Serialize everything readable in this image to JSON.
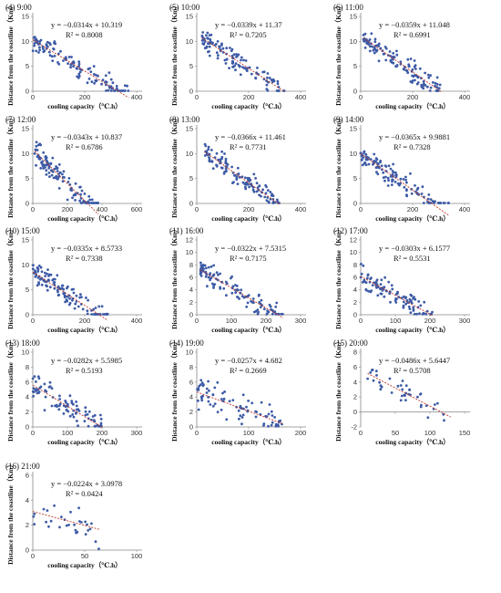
{
  "chart_data": [
    {
      "type": "scatter",
      "title": "(4) 9:00",
      "xlabel": "cooling capacity（℃.h）",
      "ylabel": "Distance from the coastline（Km）",
      "equation": "y = −0.0314x + 10.319",
      "r2": "R² = 0.8008",
      "slope": -0.0314,
      "intercept": 10.319,
      "xlim": [
        0,
        400
      ],
      "ylim": [
        0,
        15
      ],
      "xticks": [
        0,
        200,
        400
      ],
      "yticks": [
        0,
        5,
        10,
        15
      ],
      "point_count": 120,
      "x_range": [
        0,
        370
      ]
    },
    {
      "type": "scatter",
      "title": "(5) 10:00",
      "xlabel": "cooling capacity（℃.h）",
      "ylabel": "Distance from the coastline（Km）",
      "equation": "y = −0.0339x + 11.37",
      "r2": "R² = 0.7205",
      "slope": -0.0339,
      "intercept": 11.37,
      "xlim": [
        0,
        400
      ],
      "ylim": [
        0,
        15
      ],
      "xticks": [
        0,
        200,
        400
      ],
      "yticks": [
        0,
        5,
        10,
        15
      ],
      "point_count": 120,
      "x_range": [
        20,
        340
      ]
    },
    {
      "type": "scatter",
      "title": "(6) 11:00",
      "xlabel": "cooling capacity（℃.h）",
      "ylabel": "Distance from the coastline（Km）",
      "equation": "y = −0.0359x + 11.048",
      "r2": "R² = 0.6991",
      "slope": -0.0359,
      "intercept": 11.048,
      "xlim": [
        0,
        400
      ],
      "ylim": [
        0,
        15
      ],
      "xticks": [
        0,
        200,
        400
      ],
      "yticks": [
        0,
        5,
        10,
        15
      ],
      "point_count": 120,
      "x_range": [
        10,
        310
      ]
    },
    {
      "type": "scatter",
      "title": "(7) 12:00",
      "xlabel": "cooling capacity（℃.h）",
      "ylabel": "Distance from the coastline（Km）",
      "equation": "y = −0.0343x + 10.837",
      "r2": "R² = 0.6786",
      "slope": -0.0343,
      "intercept": 10.837,
      "xlim": [
        0,
        600
      ],
      "ylim": [
        0,
        15
      ],
      "xticks": [
        0,
        200,
        400,
        600
      ],
      "yticks": [
        0,
        5,
        10,
        15
      ],
      "point_count": 120,
      "x_range": [
        10,
        380
      ]
    },
    {
      "type": "scatter",
      "title": "(8) 13:00",
      "xlabel": "cooling capacity（℃.h）",
      "ylabel": "Distance from the coastline（Km）",
      "equation": "y = −0.0366x + 11.461",
      "r2": "R² = 0.7731",
      "slope": -0.0366,
      "intercept": 11.461,
      "xlim": [
        0,
        400
      ],
      "ylim": [
        0,
        15
      ],
      "xticks": [
        0,
        200,
        400
      ],
      "yticks": [
        0,
        5,
        10,
        15
      ],
      "point_count": 120,
      "x_range": [
        30,
        320
      ]
    },
    {
      "type": "scatter",
      "title": "(9) 14:00",
      "xlabel": "cooling capacity（℃.h）",
      "ylabel": "Distance from the coastline（Km）",
      "equation": "y = −0.0365x + 9.9881",
      "r2": "R² = 0.7328",
      "slope": -0.0365,
      "intercept": 9.9881,
      "xlim": [
        0,
        400
      ],
      "ylim": [
        0,
        15
      ],
      "xticks": [
        0,
        200,
        400
      ],
      "yticks": [
        0,
        5,
        10,
        15
      ],
      "point_count": 120,
      "x_range": [
        0,
        340
      ]
    },
    {
      "type": "scatter",
      "title": "(10) 15:00",
      "xlabel": "cooling capacity（℃.h）",
      "ylabel": "Distance from the coastline（Km）",
      "equation": "y = −0.0335x + 8.5733",
      "r2": "R² = 0.7338",
      "slope": -0.0335,
      "intercept": 8.5733,
      "xlim": [
        0,
        400
      ],
      "ylim": [
        0,
        15
      ],
      "xticks": [
        0,
        200,
        400
      ],
      "yticks": [
        0,
        5,
        10,
        15
      ],
      "point_count": 120,
      "x_range": [
        0,
        290
      ]
    },
    {
      "type": "scatter",
      "title": "(11) 16:00",
      "xlabel": "cooling capacity（℃.h）",
      "ylabel": "Distance from the coastline（Km）",
      "equation": "y = −0.0322x + 7.5315",
      "r2": "R² = 0.7175",
      "slope": -0.0322,
      "intercept": 7.5315,
      "xlim": [
        0,
        300
      ],
      "ylim": [
        0,
        12
      ],
      "xticks": [
        0,
        100,
        200,
        300
      ],
      "yticks": [
        0,
        2,
        4,
        6,
        8,
        10,
        12
      ],
      "point_count": 120,
      "x_range": [
        10,
        250
      ]
    },
    {
      "type": "scatter",
      "title": "(12) 17:00",
      "xlabel": "cooling capacity（℃.h）",
      "ylabel": "Distance from the coastline（Km）",
      "equation": "y = −0.0303x + 6.1577",
      "r2": "R² = 0.5531",
      "slope": -0.0303,
      "intercept": 6.1577,
      "xlim": [
        0,
        300
      ],
      "ylim": [
        0,
        12
      ],
      "xticks": [
        0,
        100,
        200,
        300
      ],
      "yticks": [
        0,
        2,
        4,
        6,
        8,
        10,
        12
      ],
      "point_count": 100,
      "x_range": [
        0,
        210
      ]
    },
    {
      "type": "scatter",
      "title": "(13) 18:00",
      "xlabel": "cooling capacity（℃.h）",
      "ylabel": "Distance from the coastline（Km）",
      "equation": "y = −0.0282x + 5.5985",
      "r2": "R² = 0.5193",
      "slope": -0.0282,
      "intercept": 5.5985,
      "xlim": [
        0,
        300
      ],
      "ylim": [
        0,
        10
      ],
      "xticks": [
        0,
        100,
        200,
        300
      ],
      "yticks": [
        0,
        2,
        4,
        6,
        8,
        10
      ],
      "point_count": 90,
      "x_range": [
        0,
        200
      ]
    },
    {
      "type": "scatter",
      "title": "(14) 19:00",
      "xlabel": "cooling capacity（℃.h）",
      "ylabel": "Distance from the coastline（Km）",
      "equation": "y = −0.0257x + 4.682",
      "r2": "R² = 0.2669",
      "slope": -0.0257,
      "intercept": 4.682,
      "xlim": [
        0,
        200
      ],
      "ylim": [
        0,
        10
      ],
      "xticks": [
        0,
        100,
        200
      ],
      "yticks": [
        0,
        2,
        4,
        6,
        8,
        10
      ],
      "point_count": 80,
      "x_range": [
        0,
        165
      ]
    },
    {
      "type": "scatter",
      "title": "(15) 20:00",
      "xlabel": "cooling capacity（℃.h）",
      "ylabel": "Distance from the coastline（Km）",
      "equation": "y = −0.0486x + 5.6447",
      "r2": "R² = 0.5708",
      "slope": -0.0486,
      "intercept": 5.6447,
      "xlim": [
        0,
        150
      ],
      "ylim": [
        -2,
        8
      ],
      "xticks": [
        0,
        50,
        100,
        150
      ],
      "yticks": [
        -2,
        0,
        2,
        4,
        6,
        8
      ],
      "point_count": 40,
      "x_range": [
        10,
        130
      ]
    },
    {
      "type": "scatter",
      "title": "(16) 21:00",
      "xlabel": "cooling capacity（℃.h）",
      "ylabel": "Distance from the coastline（Km）",
      "equation": "y = −0.0224x + 3.0978",
      "r2": "R² = 0.0424",
      "slope": -0.0224,
      "intercept": 3.0978,
      "xlim": [
        0,
        100
      ],
      "ylim": [
        0,
        6
      ],
      "xticks": [
        0,
        50,
        100
      ],
      "yticks": [
        0,
        2,
        4,
        6
      ],
      "point_count": 30,
      "x_range": [
        0,
        65
      ]
    }
  ],
  "colors": {
    "point": "#3c5aa6",
    "trend": "#c0392b",
    "axis": "#888888"
  }
}
